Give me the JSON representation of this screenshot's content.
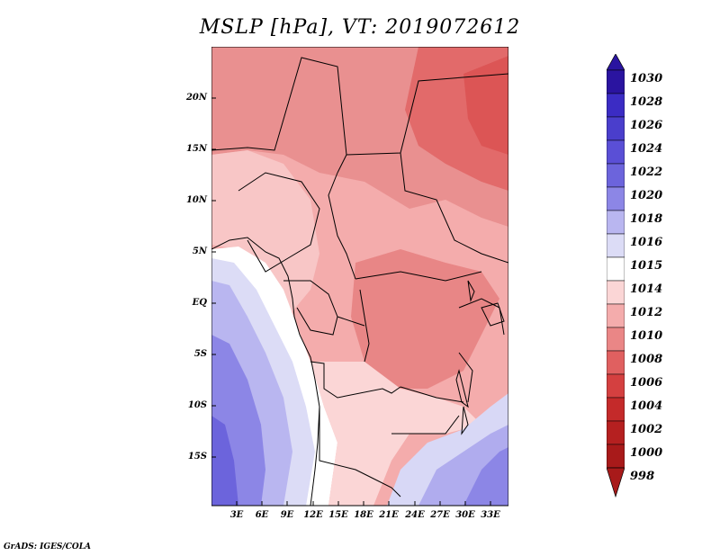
{
  "title": "MSLP [hPa], VT: 2019072612",
  "footer": "GrADS: IGES/COLA",
  "map": {
    "lat_labels": [
      "20N",
      "15N",
      "10N",
      "5N",
      "EQ",
      "5S",
      "10S",
      "15S"
    ],
    "lon_labels": [
      "3E",
      "6E",
      "9E",
      "12E",
      "15E",
      "18E",
      "21E",
      "24E",
      "27E",
      "30E",
      "33E"
    ]
  },
  "colorbar": {
    "labels": [
      "1030",
      "1028",
      "1026",
      "1024",
      "1022",
      "1020",
      "1018",
      "1016",
      "1015",
      "1014",
      "1012",
      "1010",
      "1008",
      "1006",
      "1004",
      "1002",
      "1000",
      "998"
    ],
    "colors": {
      "deep_blue": "#2a14a0",
      "blue": "#3b2cc4",
      "mid_blue": "#5a4fd6",
      "light_blue": "#8c86e6",
      "pale_blue": "#b9b6f0",
      "very_pale_blue": "#dcdcf6",
      "white": "#ffffff",
      "pale_red": "#fbd6d6",
      "light_red": "#f4acac",
      "mid_red": "#ea8686",
      "red": "#e06060",
      "deep_red": "#c42a2a",
      "dark_red": "#a81a1a"
    }
  }
}
